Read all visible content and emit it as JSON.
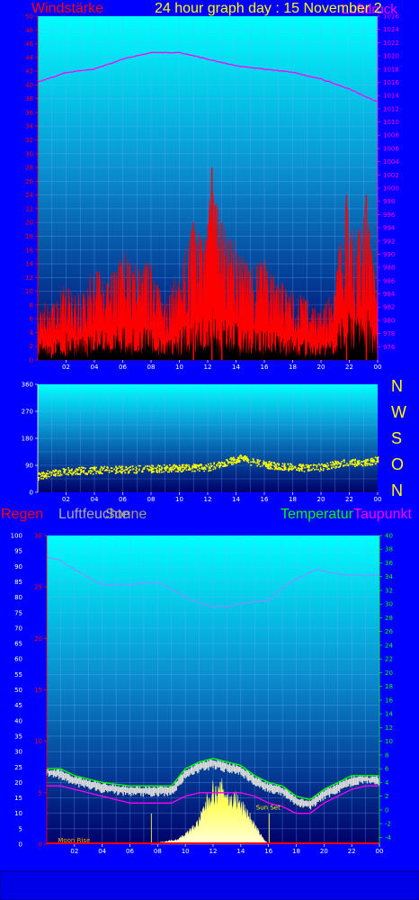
{
  "colors": {
    "background": "#0000ff",
    "wind_label": "#ff0000",
    "title": "#ffff00",
    "pressure": "#ff00ff",
    "compass": "#ffff00",
    "rain": "#ff0000",
    "humidity": "#aaaaaa",
    "sun": "#ffff00",
    "temperature": "#00ff00",
    "dewpoint": "#ff00ff"
  },
  "header": {
    "wind_label": "Windstärke",
    "title": "24 hour graph day : 15 November 2",
    "pressure_label": "Luftdruck"
  },
  "compass": [
    "N",
    "W",
    "S",
    "O",
    "N"
  ],
  "bottom_labels": {
    "rain": "Regen",
    "humidity": "Luftfeuchte",
    "sun": "Sonne",
    "temperature": "Temperatur",
    "dewpoint": "Taupunkt"
  },
  "chart_data": [
    {
      "type": "area",
      "name": "wind",
      "x_ticks": [
        "02",
        "04",
        "06",
        "08",
        "10",
        "12",
        "14",
        "16",
        "18",
        "20",
        "22",
        "00"
      ],
      "ylim": [
        0,
        50
      ],
      "y_ticks": [
        0,
        2,
        4,
        6,
        8,
        10,
        12,
        14,
        16,
        18,
        20,
        22,
        24,
        26,
        28,
        30,
        32,
        34,
        36,
        38,
        40,
        42,
        44,
        46,
        48,
        50
      ],
      "y2lim": [
        974,
        1026
      ],
      "y2_ticks": [
        976,
        978,
        980,
        982,
        984,
        986,
        988,
        990,
        992,
        994,
        996,
        998,
        1000,
        1002,
        1004,
        1006,
        1008,
        1010,
        1012,
        1014,
        1016,
        1018,
        1020,
        1022,
        1024,
        1026
      ],
      "series": [
        {
          "name": "Windstärke",
          "color": "#ff0000",
          "x": [
            0.0,
            1.0,
            2.0,
            3.0,
            4.0,
            5.0,
            6.0,
            7.0,
            8.0,
            8.9,
            10.0,
            11.0,
            11.9,
            12.3,
            13.0,
            14.0,
            15.0,
            16.0,
            17.0,
            18.0,
            19.0,
            20.0,
            21.0,
            21.8,
            22.5,
            23.2,
            24.0
          ],
          "values": [
            10,
            8,
            12,
            10,
            14,
            12,
            16,
            14,
            15,
            8,
            14,
            20,
            18,
            28,
            20,
            17,
            14,
            15,
            12,
            10,
            9,
            7,
            12,
            24,
            19,
            24,
            9
          ]
        },
        {
          "name": "Luftdruck",
          "color": "#ff00ff",
          "x": [
            0,
            2,
            4,
            6,
            8,
            10,
            12,
            14,
            16,
            18,
            20,
            22,
            24
          ],
          "values": [
            1016,
            1017.5,
            1018,
            1019.5,
            1020.5,
            1020.5,
            1019.5,
            1018.5,
            1018,
            1017.5,
            1016.5,
            1015,
            1013
          ]
        }
      ]
    },
    {
      "type": "scatter",
      "name": "wind-direction",
      "x_ticks": [
        "02",
        "04",
        "06",
        "08",
        "10",
        "12",
        "14",
        "16",
        "18",
        "20",
        "22",
        "00"
      ],
      "ylim": [
        0,
        360
      ],
      "y_ticks": [
        0,
        90,
        180,
        270,
        360
      ],
      "series": [
        {
          "name": "direction",
          "color": "#ffff00",
          "x": [
            0,
            1,
            2,
            4,
            6,
            8,
            10,
            12,
            13.5,
            14.5,
            15,
            16,
            17,
            18,
            19,
            20,
            21,
            22,
            23,
            24
          ],
          "values": [
            55,
            65,
            72,
            75,
            77,
            80,
            83,
            85,
            105,
            118,
            105,
            95,
            88,
            85,
            83,
            85,
            95,
            100,
            102,
            108
          ]
        }
      ]
    },
    {
      "type": "line",
      "name": "climate",
      "x_ticks": [
        "02",
        "04",
        "06",
        "08",
        "10",
        "12",
        "14",
        "16",
        "18",
        "20",
        "22",
        "00"
      ],
      "ylim": [
        0,
        100
      ],
      "y_ticks": [
        0,
        5,
        10,
        15,
        20,
        25,
        30,
        35,
        40,
        45,
        50,
        55,
        60,
        65,
        70,
        75,
        80,
        85,
        90,
        95,
        100
      ],
      "rain_ticks": [
        0,
        5,
        10,
        15,
        20,
        25,
        30
      ],
      "y2lim": [
        -5,
        40
      ],
      "y2_ticks": [
        -4,
        -2,
        0,
        2,
        4,
        6,
        8,
        10,
        12,
        14,
        16,
        18,
        20,
        22,
        24,
        26,
        28,
        30,
        32,
        34,
        36,
        38,
        40
      ],
      "annotations": [
        "Moon Rise",
        "Sun Set"
      ],
      "series": [
        {
          "name": "Luftfeuchte",
          "color": "#8888ff",
          "x": [
            0,
            1,
            2,
            4,
            6,
            7.5,
            8.5,
            10,
            11,
            12,
            13,
            14,
            16,
            17,
            18,
            19.5,
            20.5,
            22,
            24
          ],
          "values": [
            93,
            92,
            89,
            84,
            84,
            85,
            84,
            80,
            78,
            77,
            77,
            78,
            79,
            83,
            86,
            89,
            88,
            87,
            87
          ]
        },
        {
          "name": "Temperatur",
          "color": "#00ff00",
          "x": [
            0,
            1,
            2,
            4,
            6,
            7.5,
            9,
            10,
            11,
            12,
            13,
            14,
            15,
            16,
            17,
            18,
            19,
            20,
            21,
            22,
            23,
            24
          ],
          "values": [
            6.0,
            6.0,
            5.0,
            4.0,
            3.5,
            3.5,
            3.5,
            6.0,
            7.0,
            7.5,
            7.0,
            6.5,
            5.0,
            4.0,
            3.5,
            2.0,
            1.5,
            3.0,
            4.0,
            5.0,
            5.0,
            5.0
          ]
        },
        {
          "name": "Temperatur (min)",
          "color": "#cccccc",
          "x": [
            0,
            1,
            2,
            4,
            6,
            7.5,
            9,
            10,
            11,
            12,
            13,
            14,
            15,
            16,
            17,
            18,
            19,
            20,
            21,
            22,
            23,
            24
          ],
          "values": [
            5.5,
            5.0,
            4.0,
            3.0,
            2.5,
            2.5,
            2.5,
            5.0,
            6.0,
            6.5,
            6.0,
            5.5,
            4.0,
            3.0,
            2.5,
            1.0,
            0.5,
            2.0,
            3.0,
            4.0,
            4.5,
            4.0
          ]
        },
        {
          "name": "Taupunkt",
          "color": "#ff00ff",
          "x": [
            0,
            1,
            2,
            4,
            6,
            7.5,
            9,
            10,
            11,
            12,
            13,
            14,
            15,
            16,
            17,
            18,
            19,
            20,
            21,
            22,
            23,
            24
          ],
          "values": [
            3.5,
            3.5,
            3.0,
            2.0,
            1.0,
            1.0,
            1.0,
            2.0,
            2.5,
            2.5,
            2.5,
            2.5,
            2.0,
            1.0,
            0.5,
            -0.5,
            -0.5,
            1.0,
            2.0,
            3.0,
            3.5,
            3.5
          ]
        },
        {
          "name": "Sonne",
          "color": "#ffff00",
          "x": [
            7.5,
            8.5,
            9.5,
            10.5,
            11,
            11.5,
            12,
            12.3,
            12.7,
            13.2,
            13.6,
            14,
            14.5,
            15,
            15.5,
            16
          ],
          "values": [
            0,
            1,
            2,
            6,
            9,
            16,
            21,
            19,
            22,
            17,
            18,
            15,
            12,
            7,
            3,
            0
          ]
        },
        {
          "name": "Regen",
          "color": "#ff0000",
          "x": [
            0,
            24
          ],
          "values": [
            0,
            0
          ]
        }
      ]
    }
  ]
}
